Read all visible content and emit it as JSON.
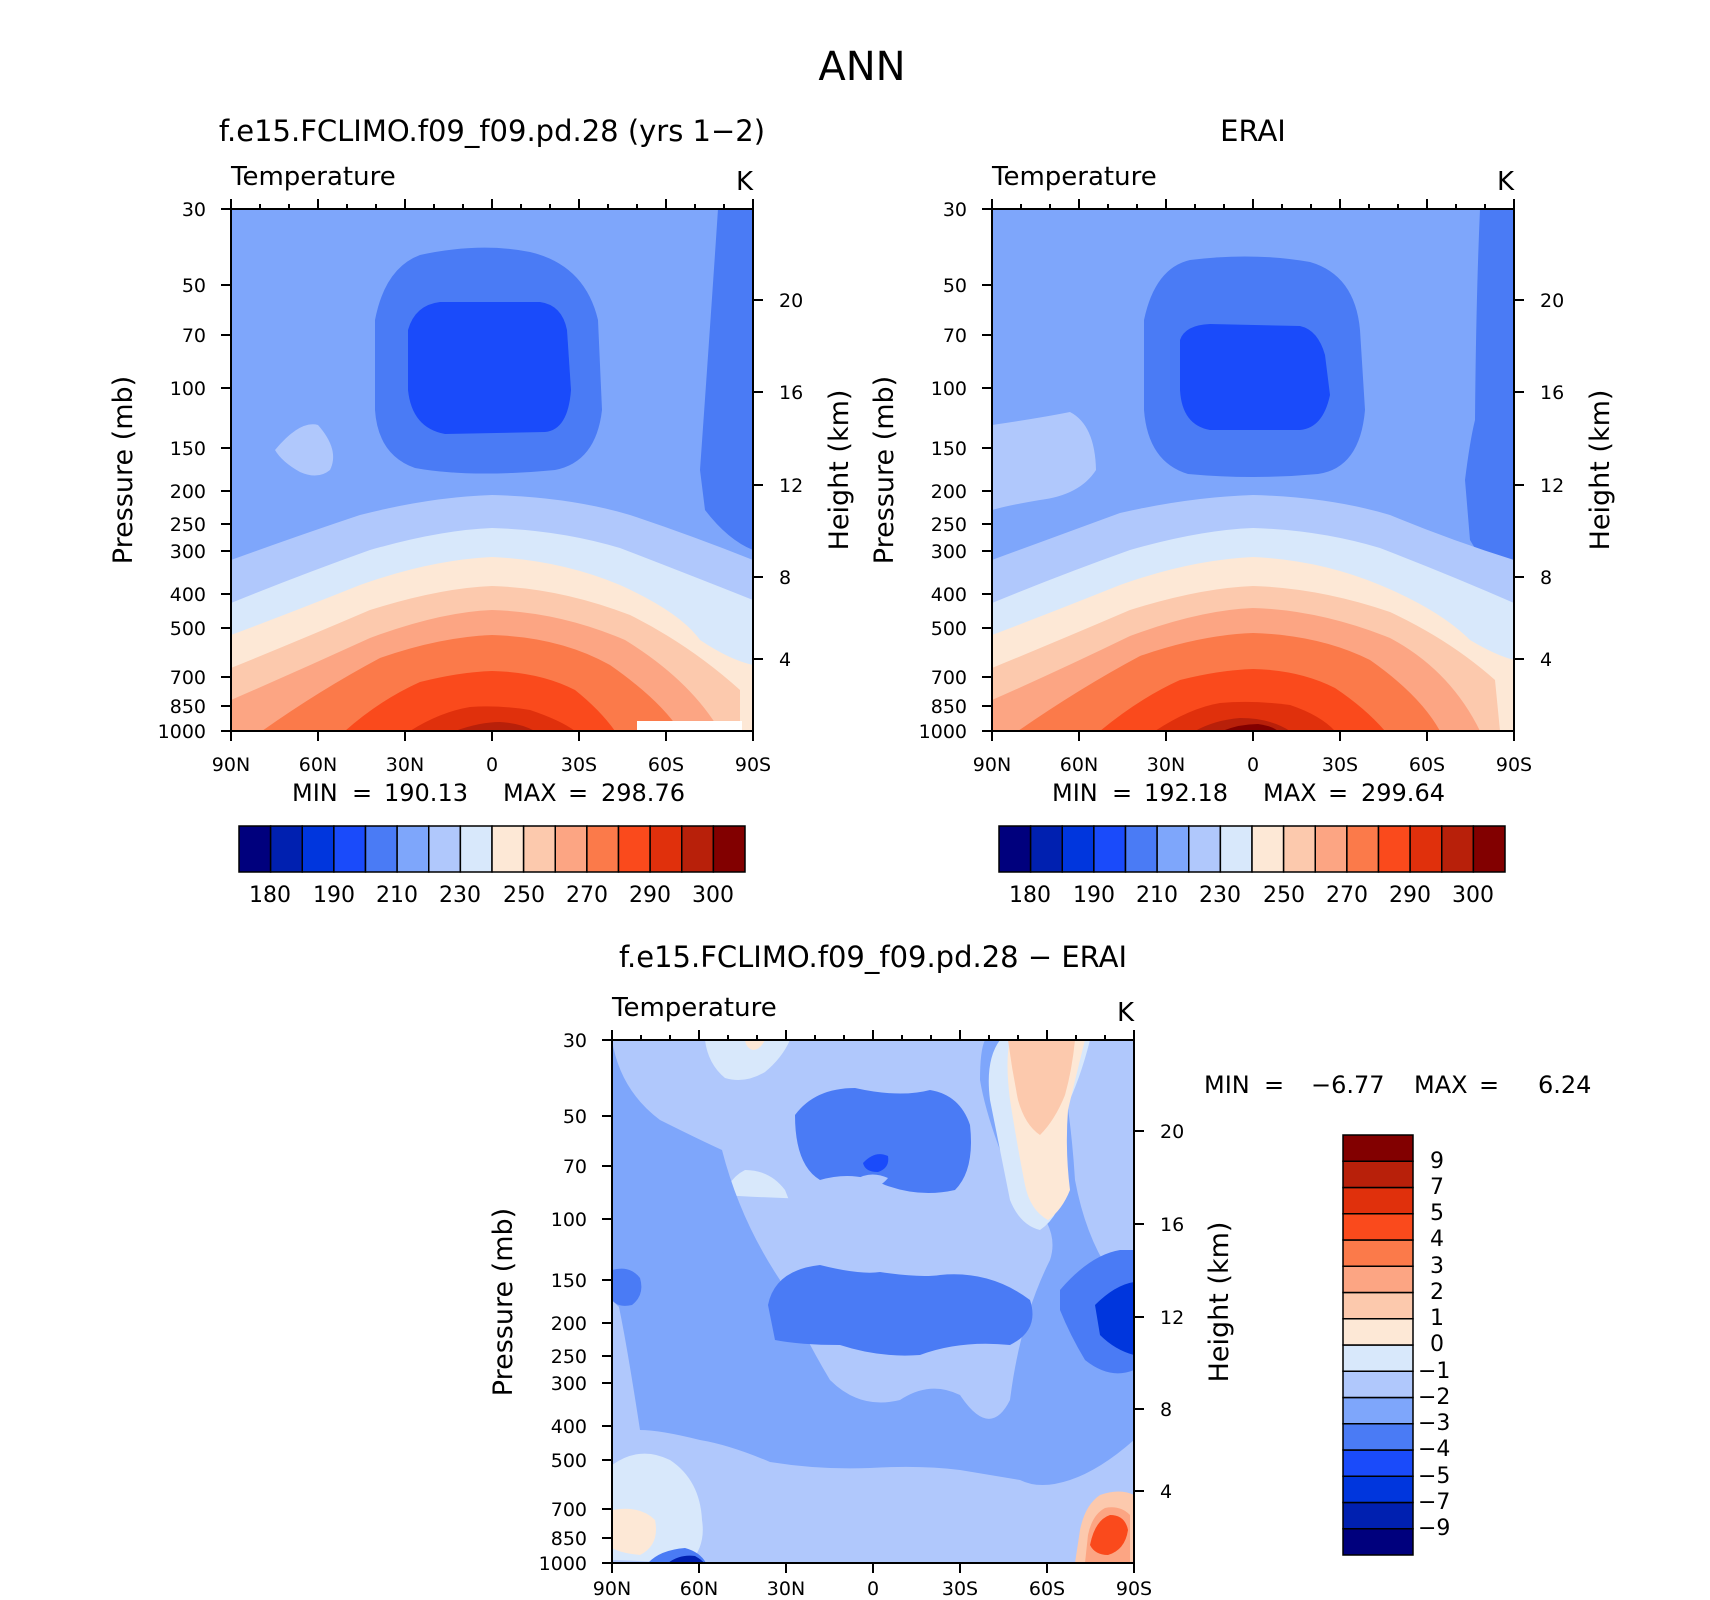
{
  "figure": {
    "title": "ANN"
  },
  "palette_main": [
    "#00007d",
    "#0020b0",
    "#0036dd",
    "#1a4bfa",
    "#4a7bf5",
    "#7ea6fb",
    "#b0c8fc",
    "#d8e8fb",
    "#fde8d6",
    "#fcc9ad",
    "#fca583",
    "#fb7a4a",
    "#fa4a1c",
    "#e0300c",
    "#b8200a",
    "#820000"
  ],
  "palette_diff": [
    "#00007d",
    "#0020b0",
    "#0036dd",
    "#1a4bfa",
    "#4a7bf5",
    "#7ea6fb",
    "#b0c8fc",
    "#d8e8fb",
    "#fde8d6",
    "#fcc9ad",
    "#fca583",
    "#fb7a4a",
    "#fa4a1c",
    "#e0300c",
    "#b8200a",
    "#820000"
  ],
  "chart_data": [
    {
      "id": "model",
      "type": "contour",
      "title": "f.e15.FCLIMO.f09_f09.pd.28 (yrs 1-2)",
      "left_label": "Temperature",
      "right_label": "K",
      "ylabel": "Pressure (mb)",
      "y2label": "Height (km)",
      "x_ticks": [
        "90N",
        "60N",
        "30N",
        "0",
        "30S",
        "60S",
        "90S"
      ],
      "y_ticks": [
        "30",
        "50",
        "70",
        "100",
        "150",
        "200",
        "250",
        "300",
        "400",
        "500",
        "700",
        "850",
        "1000"
      ],
      "y2_ticks": [
        "20",
        "16",
        "12",
        "8",
        "4"
      ],
      "min_label": "MIN",
      "min_value": "190.13",
      "max_label": "MAX",
      "max_value": "298.76",
      "colorbar_labels": [
        "180",
        "190",
        "210",
        "230",
        "250",
        "270",
        "290",
        "300"
      ]
    },
    {
      "id": "obs",
      "type": "contour",
      "title": "ERAI",
      "left_label": "Temperature",
      "right_label": "K",
      "ylabel": "Pressure (mb)",
      "y2label": "Height (km)",
      "x_ticks": [
        "90N",
        "60N",
        "30N",
        "0",
        "30S",
        "60S",
        "90S"
      ],
      "y_ticks": [
        "30",
        "50",
        "70",
        "100",
        "150",
        "200",
        "250",
        "300",
        "400",
        "500",
        "700",
        "850",
        "1000"
      ],
      "y2_ticks": [
        "20",
        "16",
        "12",
        "8",
        "4"
      ],
      "min_label": "MIN",
      "min_value": "192.18",
      "max_label": "MAX",
      "max_value": "299.64",
      "colorbar_labels": [
        "180",
        "190",
        "210",
        "230",
        "250",
        "270",
        "290",
        "300"
      ]
    },
    {
      "id": "diff",
      "type": "contour",
      "title": "f.e15.FCLIMO.f09_f09.pd.28 - ERAI",
      "left_label": "Temperature",
      "right_label": "K",
      "ylabel": "Pressure (mb)",
      "y2label": "Height (km)",
      "x_ticks": [
        "90N",
        "60N",
        "30N",
        "0",
        "30S",
        "60S",
        "90S"
      ],
      "y_ticks": [
        "30",
        "50",
        "70",
        "100",
        "150",
        "200",
        "250",
        "300",
        "400",
        "500",
        "700",
        "850",
        "1000"
      ],
      "y2_ticks": [
        "20",
        "16",
        "12",
        "8",
        "4"
      ],
      "min_label": "MIN",
      "min_value": "-6.77",
      "max_label": "MAX",
      "max_value": "6.24",
      "colorbar_labels": [
        "9",
        "7",
        "5",
        "4",
        "3",
        "2",
        "1",
        "0",
        "-1",
        "-2",
        "-3",
        "-4",
        "-5",
        "-7",
        "-9"
      ]
    }
  ]
}
